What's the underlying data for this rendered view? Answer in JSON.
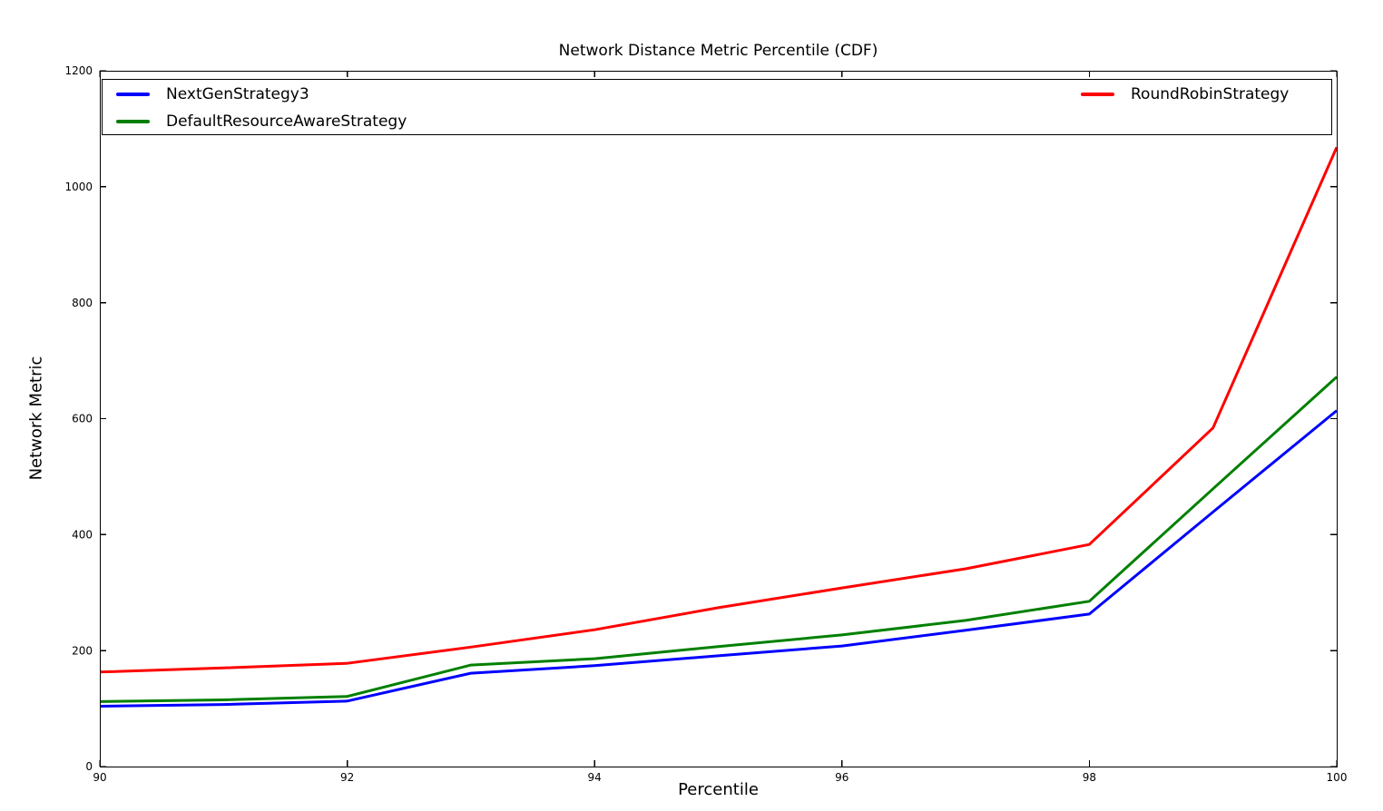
{
  "chart_data": {
    "type": "line",
    "title": "Network Distance Metric Percentile (CDF)",
    "xlabel": "Percentile",
    "ylabel": "Network Metric",
    "xlim": [
      90,
      100
    ],
    "ylim": [
      0,
      1200
    ],
    "xticks": [
      90,
      92,
      94,
      96,
      98,
      100
    ],
    "yticks": [
      0,
      200,
      400,
      600,
      800,
      1000,
      1200
    ],
    "grid": false,
    "axis_color": "#000000",
    "tick_label_color": "#000000",
    "legend": {
      "position": "inside-top-full-width",
      "columns": 2,
      "background": "#ffffff",
      "border_color": "#000000"
    },
    "x": [
      90,
      91,
      92,
      93,
      94,
      95,
      96,
      97,
      98,
      99,
      100
    ],
    "series": [
      {
        "name": "NextGenStrategy3",
        "color": "#0000ff",
        "values": [
          104,
          107,
          113,
          161,
          174,
          191,
          208,
          235,
          263,
          439,
          614
        ]
      },
      {
        "name": "DefaultResourceAwareStrategy",
        "color": "#008000",
        "values": [
          112,
          115,
          121,
          175,
          186,
          207,
          227,
          252,
          285,
          479,
          672
        ]
      },
      {
        "name": "RoundRobinStrategy",
        "color": "#ff0000",
        "values": [
          163,
          170,
          178,
          206,
          236,
          274,
          308,
          341,
          383,
          584,
          1068
        ]
      }
    ]
  }
}
